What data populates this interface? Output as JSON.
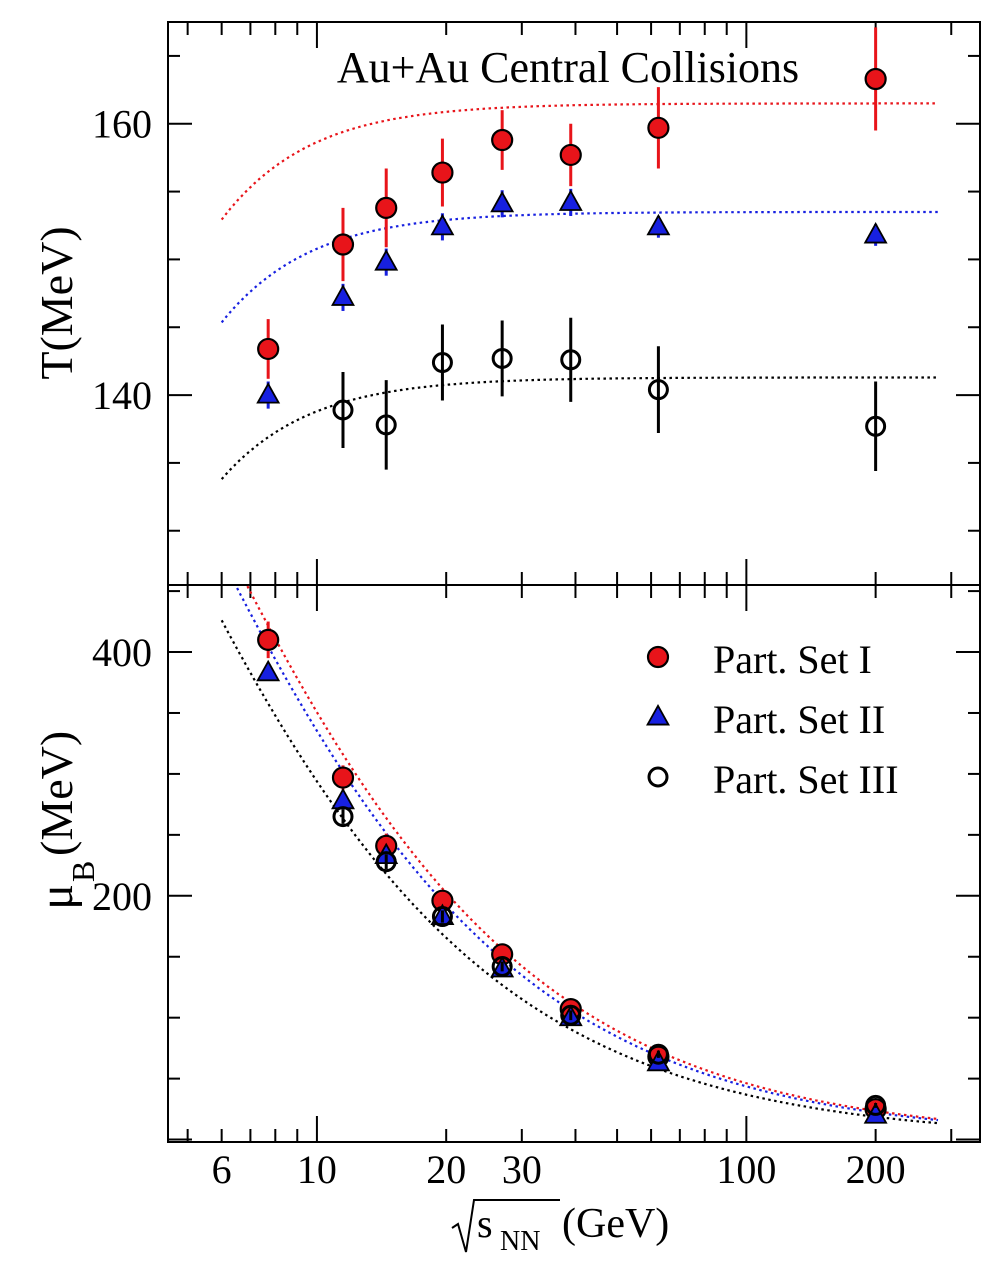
{
  "chart_data": {
    "type": "scatter",
    "title": "Au+Au Central Collisions",
    "xlabel": "√s_NN (GeV)",
    "xlabel_sub": "NN",
    "xlabel_s": "s",
    "xlabel_unit": "(GeV)",
    "xscale": "log",
    "xlim": [
      4.5,
      350
    ],
    "xticks": [
      6,
      10,
      20,
      30,
      100,
      200
    ],
    "xtick_labels": [
      "6",
      "10",
      "20",
      "30",
      "100",
      "200"
    ],
    "panels": [
      {
        "id": "temperature",
        "ylabel": "T(MeV)",
        "ylim": [
          126,
          167.5
        ],
        "yticks": [
          140,
          160
        ],
        "ytick_labels": [
          "140",
          "160"
        ],
        "series": [
          {
            "name": "Part. Set I",
            "marker": "filled-circle",
            "color": "#e8141a",
            "x": [
              7.7,
              11.5,
              14.5,
              19.6,
              27,
              39,
              62.4,
              200
            ],
            "y": [
              143.4,
              151.1,
              153.8,
              156.4,
              158.8,
              157.7,
              159.7,
              163.3
            ],
            "err": [
              2.2,
              2.7,
              2.9,
              2.5,
              2.2,
              2.3,
              3.0,
              3.8
            ],
            "fit": {
              "Tlim": 161.5,
              "a": 0.0014,
              "b": 1.1
            }
          },
          {
            "name": "Part. Set II",
            "marker": "filled-triangle",
            "color": "#1720e0",
            "x": [
              7.7,
              11.5,
              14.5,
              19.6,
              27,
              39,
              62.4,
              200
            ],
            "y": [
              140.0,
              147.2,
              149.8,
              152.4,
              154.1,
              154.2,
              152.4,
              151.8
            ],
            "err": [
              1.0,
              1.0,
              1.0,
              1.0,
              1.0,
              1.0,
              0.8,
              0.8
            ],
            "fit": {
              "Tlim": 153.5,
              "a": 0.0014,
              "b": 1.1
            }
          },
          {
            "name": "Part. Set III",
            "marker": "open-circle",
            "color": "#000000",
            "x": [
              11.5,
              14.5,
              19.6,
              27,
              39,
              62.4,
              200
            ],
            "y": [
              138.9,
              137.8,
              142.4,
              142.7,
              142.6,
              140.4,
              137.7
            ],
            "err": [
              2.8,
              3.3,
              2.8,
              2.8,
              3.1,
              3.2,
              3.3
            ],
            "fit": {
              "Tlim": 141.3,
              "a": 0.0014,
              "b": 1.1
            }
          }
        ]
      },
      {
        "id": "mu_b",
        "ylabel": "μ",
        "ylabel_sub": "B",
        "ylabel_unit": "(MeV)",
        "ylim": [
          -2,
          455
        ],
        "yticks": [
          200,
          400
        ],
        "ytick_labels": [
          "200",
          "400"
        ],
        "series": [
          {
            "name": "Part. Set I",
            "marker": "filled-circle",
            "color": "#e8141a",
            "x": [
              7.7,
              11.5,
              14.5,
              19.6,
              27,
              39,
              62.4,
              200
            ],
            "y": [
              410,
              297,
              241,
              196,
              152,
              107,
              68,
              25
            ],
            "err": [
              15,
              10,
              10,
              6,
              5,
              4,
              3,
              2
            ],
            "fit": {
              "d": 1.308,
              "e": 0.273
            }
          },
          {
            "name": "Part. Set II",
            "marker": "filled-triangle",
            "color": "#1720e0",
            "x": [
              7.7,
              11.5,
              14.5,
              19.6,
              27,
              39,
              62.4,
              200
            ],
            "y": [
              383,
              278,
              233,
              183,
              140,
              100,
              63,
              20
            ],
            "err": [
              6,
              5,
              4,
              3,
              3,
              2,
              2,
              2
            ],
            "fit": {
              "d": 1.308,
              "e": 0.29
            }
          },
          {
            "name": "Part. Set III",
            "marker": "open-circle",
            "color": "#000000",
            "x": [
              11.5,
              14.5,
              19.6,
              27,
              39,
              62.4,
              200
            ],
            "y": [
              265,
              228,
              183,
              142,
              102,
              70,
              28
            ],
            "err": [
              6,
              6,
              5,
              4,
              4,
              3,
              2
            ],
            "fit": {
              "d": 1.308,
              "e": 0.345
            }
          }
        ]
      }
    ],
    "legend": {
      "position": "top-right of lower panel",
      "entries": [
        {
          "label": "Part. Set I",
          "marker": "filled-circle",
          "color": "#e8141a"
        },
        {
          "label": "Part. Set II",
          "marker": "filled-triangle",
          "color": "#1720e0"
        },
        {
          "label": "Part. Set III",
          "marker": "open-circle",
          "color": "#000000"
        }
      ]
    }
  }
}
